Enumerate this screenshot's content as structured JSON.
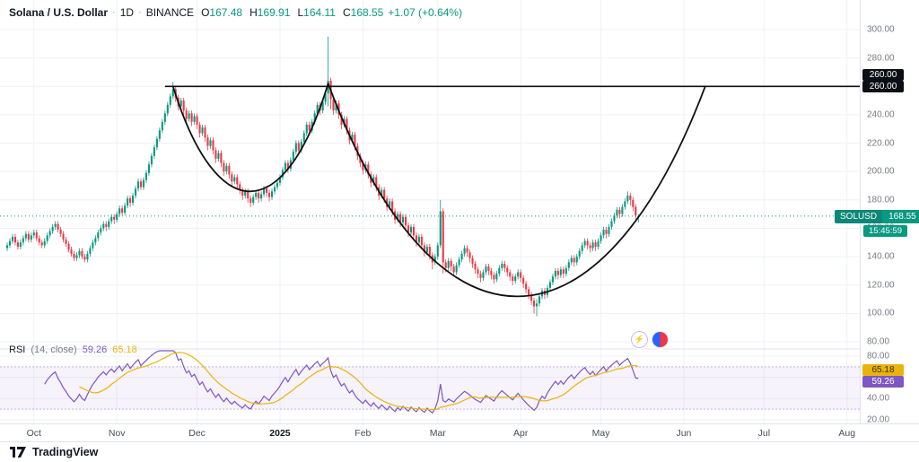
{
  "header": {
    "symbol": "Solana / U.S. Dollar",
    "sep": "·",
    "interval": "1D",
    "exchange": "BINANCE",
    "ohlc": [
      {
        "k": "O",
        "v": "167.48"
      },
      {
        "k": "H",
        "v": "169.91"
      },
      {
        "k": "L",
        "v": "164.11"
      },
      {
        "k": "C",
        "v": "168.55"
      }
    ],
    "change": "+1.07 (+0.64%)"
  },
  "rsi_legend": {
    "title": "RSI",
    "params": "(14, close)",
    "value": "59.26",
    "ma": "65.18"
  },
  "price_axis": {
    "labels": [
      "300.00",
      "280.00",
      "260.00",
      "240.00",
      "220.00",
      "200.00",
      "180.00",
      "160.00",
      "140.00",
      "120.00",
      "100.00",
      "80.00"
    ],
    "drawing_labels": [
      "260.00",
      "260.00"
    ],
    "symbol_badge": "SOLUSD",
    "last_price": "168.55",
    "countdown": "15:45:59"
  },
  "rsi_axis": {
    "labels": [
      "80.00",
      "60.00",
      "40.00",
      "20.00"
    ],
    "ma_badge": "65.18",
    "value_badge": "59.26"
  },
  "time_axis": {
    "labels": [
      "Oct",
      "Nov",
      "Dec",
      "2025",
      "Feb",
      "Mar",
      "Apr",
      "May",
      "Jun",
      "Jul",
      "Aug"
    ],
    "month_indices": [
      10,
      41,
      71,
      102,
      133,
      161,
      192,
      222,
      253,
      283,
      314
    ]
  },
  "icons": {
    "bolt_glyph": "⚡"
  },
  "footer": {
    "brand": "TradingView"
  },
  "colors": {
    "up": "#089981",
    "down": "#f23645",
    "drawing": "#111111",
    "rsi_line": "#7e57c2",
    "rsi_ma": "#eab30c",
    "grid": "#eef1f7",
    "axis_text": "#787b86",
    "text": "#131722",
    "symbol_badge_bg": "#0d8777"
  },
  "chart_data": {
    "type": "candlestick",
    "title": "Solana / U.S. Dollar",
    "symbol": "SOLUSD",
    "interval": "1D",
    "months": [
      "Oct",
      "Nov",
      "Dec",
      "2025",
      "Feb",
      "Mar",
      "Apr",
      "May",
      "Jun",
      "Jul",
      "Aug"
    ],
    "ylim_main": [
      80,
      300
    ],
    "ylim_rsi": [
      20,
      80
    ],
    "candles": [
      [
        146,
        150,
        144,
        148
      ],
      [
        148,
        153,
        146,
        151
      ],
      [
        151,
        156,
        149,
        154
      ],
      [
        154,
        156,
        148,
        150
      ],
      [
        150,
        152,
        145,
        147
      ],
      [
        147,
        152,
        145,
        150
      ],
      [
        150,
        155,
        148,
        153
      ],
      [
        153,
        158,
        151,
        156
      ],
      [
        156,
        158,
        150,
        152
      ],
      [
        152,
        157,
        150,
        155
      ],
      [
        155,
        159,
        153,
        157
      ],
      [
        157,
        159,
        151,
        153
      ],
      [
        153,
        155,
        148,
        150
      ],
      [
        150,
        152,
        146,
        148
      ],
      [
        148,
        153,
        146,
        151
      ],
      [
        151,
        157,
        149,
        155
      ],
      [
        155,
        160,
        153,
        158
      ],
      [
        158,
        163,
        156,
        161
      ],
      [
        161,
        165,
        159,
        163
      ],
      [
        163,
        165,
        157,
        159
      ],
      [
        159,
        161,
        154,
        156
      ],
      [
        156,
        158,
        150,
        152
      ],
      [
        152,
        154,
        147,
        149
      ],
      [
        149,
        151,
        143,
        145
      ],
      [
        145,
        147,
        140,
        142
      ],
      [
        142,
        144,
        137,
        139
      ],
      [
        139,
        143,
        137,
        141
      ],
      [
        141,
        146,
        139,
        144
      ],
      [
        144,
        146,
        138,
        140
      ],
      [
        140,
        142,
        136,
        138
      ],
      [
        138,
        144,
        136,
        142
      ],
      [
        142,
        148,
        140,
        146
      ],
      [
        146,
        152,
        144,
        150
      ],
      [
        150,
        155,
        148,
        153
      ],
      [
        153,
        159,
        151,
        157
      ],
      [
        157,
        162,
        155,
        160
      ],
      [
        160,
        165,
        158,
        163
      ],
      [
        163,
        165,
        158,
        161
      ],
      [
        161,
        167,
        159,
        165
      ],
      [
        165,
        170,
        163,
        168
      ],
      [
        168,
        170,
        163,
        166
      ],
      [
        166,
        172,
        164,
        170
      ],
      [
        170,
        176,
        168,
        174
      ],
      [
        174,
        176,
        169,
        171
      ],
      [
        171,
        178,
        169,
        176
      ],
      [
        176,
        183,
        174,
        181
      ],
      [
        181,
        183,
        175,
        178
      ],
      [
        178,
        185,
        176,
        183
      ],
      [
        183,
        190,
        181,
        188
      ],
      [
        188,
        195,
        186,
        193
      ],
      [
        193,
        195,
        187,
        189
      ],
      [
        189,
        196,
        187,
        194
      ],
      [
        194,
        201,
        192,
        199
      ],
      [
        199,
        207,
        197,
        205
      ],
      [
        205,
        213,
        203,
        211
      ],
      [
        211,
        219,
        209,
        217
      ],
      [
        217,
        225,
        215,
        223
      ],
      [
        223,
        231,
        221,
        229
      ],
      [
        229,
        237,
        227,
        235
      ],
      [
        235,
        243,
        233,
        241
      ],
      [
        241,
        249,
        239,
        247
      ],
      [
        247,
        255,
        245,
        253
      ],
      [
        253,
        263,
        251,
        258
      ],
      [
        258,
        260,
        249,
        252
      ],
      [
        252,
        254,
        243,
        246
      ],
      [
        246,
        252,
        244,
        250
      ],
      [
        250,
        252,
        240,
        243
      ],
      [
        243,
        245,
        234,
        237
      ],
      [
        237,
        243,
        235,
        241
      ],
      [
        241,
        243,
        232,
        235
      ],
      [
        235,
        241,
        233,
        239
      ],
      [
        239,
        241,
        230,
        233
      ],
      [
        233,
        235,
        224,
        227
      ],
      [
        227,
        233,
        225,
        231
      ],
      [
        231,
        233,
        221,
        224
      ],
      [
        224,
        226,
        215,
        218
      ],
      [
        218,
        224,
        216,
        222
      ],
      [
        222,
        224,
        212,
        215
      ],
      [
        215,
        217,
        206,
        209
      ],
      [
        209,
        215,
        207,
        213
      ],
      [
        213,
        215,
        203,
        206
      ],
      [
        206,
        208,
        197,
        200
      ],
      [
        200,
        206,
        198,
        204
      ],
      [
        204,
        206,
        195,
        198
      ],
      [
        198,
        200,
        190,
        193
      ],
      [
        193,
        198,
        191,
        196
      ],
      [
        196,
        198,
        188,
        191
      ],
      [
        191,
        193,
        184,
        187
      ],
      [
        187,
        189,
        180,
        183
      ],
      [
        183,
        188,
        181,
        186
      ],
      [
        186,
        188,
        178,
        181
      ],
      [
        181,
        183,
        175,
        178
      ],
      [
        178,
        184,
        176,
        182
      ],
      [
        182,
        187,
        180,
        185
      ],
      [
        185,
        187,
        178,
        181
      ],
      [
        181,
        186,
        179,
        184
      ],
      [
        184,
        190,
        182,
        188
      ],
      [
        188,
        190,
        182,
        185
      ],
      [
        185,
        187,
        179,
        182
      ],
      [
        182,
        188,
        180,
        186
      ],
      [
        186,
        191,
        184,
        189
      ],
      [
        189,
        194,
        187,
        192
      ],
      [
        192,
        198,
        190,
        196
      ],
      [
        196,
        203,
        194,
        201
      ],
      [
        201,
        208,
        199,
        206
      ],
      [
        206,
        208,
        199,
        202
      ],
      [
        202,
        210,
        200,
        208
      ],
      [
        208,
        216,
        206,
        214
      ],
      [
        214,
        222,
        212,
        220
      ],
      [
        220,
        222,
        212,
        215
      ],
      [
        215,
        223,
        213,
        221
      ],
      [
        221,
        229,
        219,
        227
      ],
      [
        227,
        235,
        225,
        233
      ],
      [
        233,
        235,
        226,
        229
      ],
      [
        229,
        237,
        227,
        235
      ],
      [
        235,
        243,
        233,
        241
      ],
      [
        241,
        249,
        239,
        247
      ],
      [
        247,
        249,
        240,
        243
      ],
      [
        243,
        251,
        241,
        249
      ],
      [
        249,
        257,
        247,
        255
      ],
      [
        255,
        295,
        246,
        264
      ],
      [
        264,
        266,
        244,
        251
      ],
      [
        251,
        253,
        240,
        243
      ],
      [
        243,
        250,
        241,
        248
      ],
      [
        248,
        250,
        237,
        240
      ],
      [
        240,
        242,
        230,
        233
      ],
      [
        233,
        239,
        231,
        237
      ],
      [
        237,
        239,
        226,
        229
      ],
      [
        229,
        231,
        219,
        222
      ],
      [
        222,
        228,
        220,
        226
      ],
      [
        226,
        228,
        215,
        218
      ],
      [
        218,
        220,
        208,
        211
      ],
      [
        211,
        213,
        203,
        206
      ],
      [
        206,
        208,
        198,
        201
      ],
      [
        201,
        207,
        199,
        205
      ],
      [
        205,
        207,
        195,
        198
      ],
      [
        198,
        200,
        189,
        192
      ],
      [
        192,
        198,
        190,
        196
      ],
      [
        196,
        198,
        186,
        189
      ],
      [
        189,
        191,
        180,
        183
      ],
      [
        183,
        189,
        181,
        187
      ],
      [
        187,
        189,
        178,
        181
      ],
      [
        181,
        183,
        172,
        175
      ],
      [
        175,
        181,
        173,
        179
      ],
      [
        179,
        181,
        169,
        172
      ],
      [
        172,
        174,
        163,
        166
      ],
      [
        166,
        172,
        164,
        170
      ],
      [
        170,
        172,
        161,
        164
      ],
      [
        164,
        170,
        162,
        168
      ],
      [
        168,
        170,
        159,
        162
      ],
      [
        162,
        164,
        154,
        157
      ],
      [
        157,
        163,
        155,
        161
      ],
      [
        161,
        163,
        152,
        155
      ],
      [
        155,
        157,
        147,
        150
      ],
      [
        150,
        156,
        148,
        154
      ],
      [
        154,
        156,
        145,
        148
      ],
      [
        148,
        150,
        140,
        143
      ],
      [
        143,
        149,
        141,
        147
      ],
      [
        147,
        149,
        138,
        141
      ],
      [
        141,
        143,
        131,
        136
      ],
      [
        136,
        142,
        134,
        140
      ],
      [
        140,
        150,
        138,
        148
      ],
      [
        148,
        180,
        146,
        172
      ],
      [
        172,
        174,
        128,
        136
      ],
      [
        136,
        138,
        129,
        132
      ],
      [
        132,
        139,
        130,
        137
      ],
      [
        137,
        139,
        130,
        133
      ],
      [
        133,
        135,
        126,
        129
      ],
      [
        129,
        136,
        127,
        134
      ],
      [
        134,
        140,
        132,
        138
      ],
      [
        138,
        144,
        136,
        142
      ],
      [
        142,
        148,
        140,
        146
      ],
      [
        146,
        148,
        140,
        143
      ],
      [
        143,
        145,
        136,
        139
      ],
      [
        139,
        141,
        132,
        135
      ],
      [
        135,
        137,
        128,
        131
      ],
      [
        131,
        133,
        125,
        128
      ],
      [
        128,
        130,
        122,
        125
      ],
      [
        125,
        131,
        123,
        129
      ],
      [
        129,
        135,
        127,
        133
      ],
      [
        133,
        135,
        127,
        130
      ],
      [
        130,
        132,
        124,
        127
      ],
      [
        127,
        129,
        121,
        124
      ],
      [
        124,
        130,
        122,
        128
      ],
      [
        128,
        134,
        126,
        132
      ],
      [
        132,
        137,
        130,
        135
      ],
      [
        135,
        137,
        129,
        132
      ],
      [
        132,
        134,
        126,
        129
      ],
      [
        129,
        131,
        123,
        126
      ],
      [
        126,
        128,
        120,
        123
      ],
      [
        123,
        128,
        121,
        126
      ],
      [
        126,
        131,
        124,
        129
      ],
      [
        129,
        131,
        122,
        125
      ],
      [
        125,
        127,
        118,
        121
      ],
      [
        121,
        123,
        114,
        117
      ],
      [
        117,
        119,
        110,
        113
      ],
      [
        113,
        115,
        106,
        109
      ],
      [
        109,
        111,
        100,
        105
      ],
      [
        105,
        110,
        98,
        107
      ],
      [
        107,
        114,
        105,
        112
      ],
      [
        112,
        118,
        110,
        116
      ],
      [
        116,
        118,
        110,
        113
      ],
      [
        113,
        120,
        111,
        118
      ],
      [
        118,
        124,
        116,
        122
      ],
      [
        122,
        128,
        120,
        126
      ],
      [
        126,
        132,
        124,
        130
      ],
      [
        130,
        132,
        124,
        127
      ],
      [
        127,
        133,
        125,
        131
      ],
      [
        131,
        133,
        125,
        128
      ],
      [
        128,
        134,
        126,
        132
      ],
      [
        132,
        138,
        130,
        136
      ],
      [
        136,
        141,
        134,
        139
      ],
      [
        139,
        141,
        133,
        136
      ],
      [
        136,
        142,
        134,
        140
      ],
      [
        140,
        146,
        138,
        144
      ],
      [
        144,
        150,
        142,
        148
      ],
      [
        148,
        153,
        146,
        151
      ],
      [
        151,
        153,
        145,
        148
      ],
      [
        148,
        150,
        143,
        146
      ],
      [
        146,
        152,
        144,
        150
      ],
      [
        150,
        152,
        144,
        147
      ],
      [
        147,
        153,
        145,
        151
      ],
      [
        151,
        157,
        149,
        155
      ],
      [
        155,
        161,
        153,
        159
      ],
      [
        159,
        161,
        153,
        156
      ],
      [
        156,
        163,
        154,
        161
      ],
      [
        161,
        167,
        159,
        165
      ],
      [
        165,
        171,
        163,
        169
      ],
      [
        169,
        175,
        167,
        173
      ],
      [
        173,
        175,
        167,
        170
      ],
      [
        170,
        177,
        168,
        175
      ],
      [
        175,
        181,
        173,
        179
      ],
      [
        179,
        186,
        177,
        183
      ],
      [
        183,
        185,
        176,
        180
      ],
      [
        180,
        182,
        172,
        175
      ],
      [
        175,
        177,
        166,
        169
      ],
      [
        167.48,
        169.91,
        164.11,
        168.55
      ]
    ],
    "overlays": {
      "resistance_line": {
        "price": 260,
        "start_index": 59
      },
      "cups": [
        {
          "start": {
            "i": 62,
            "p": 260
          },
          "bottom": {
            "i": 92,
            "p": 186
          },
          "end": {
            "i": 120,
            "p": 262
          }
        },
        {
          "start": {
            "i": 120,
            "p": 262
          },
          "bottom": {
            "i": 197,
            "p": 112
          },
          "end": {
            "i": 261,
            "p": 260
          }
        }
      ]
    },
    "rsi": {
      "period": 14,
      "source": "close",
      "value": 59.26,
      "ma": 65.18,
      "overbought": 70,
      "oversold": 30
    }
  }
}
